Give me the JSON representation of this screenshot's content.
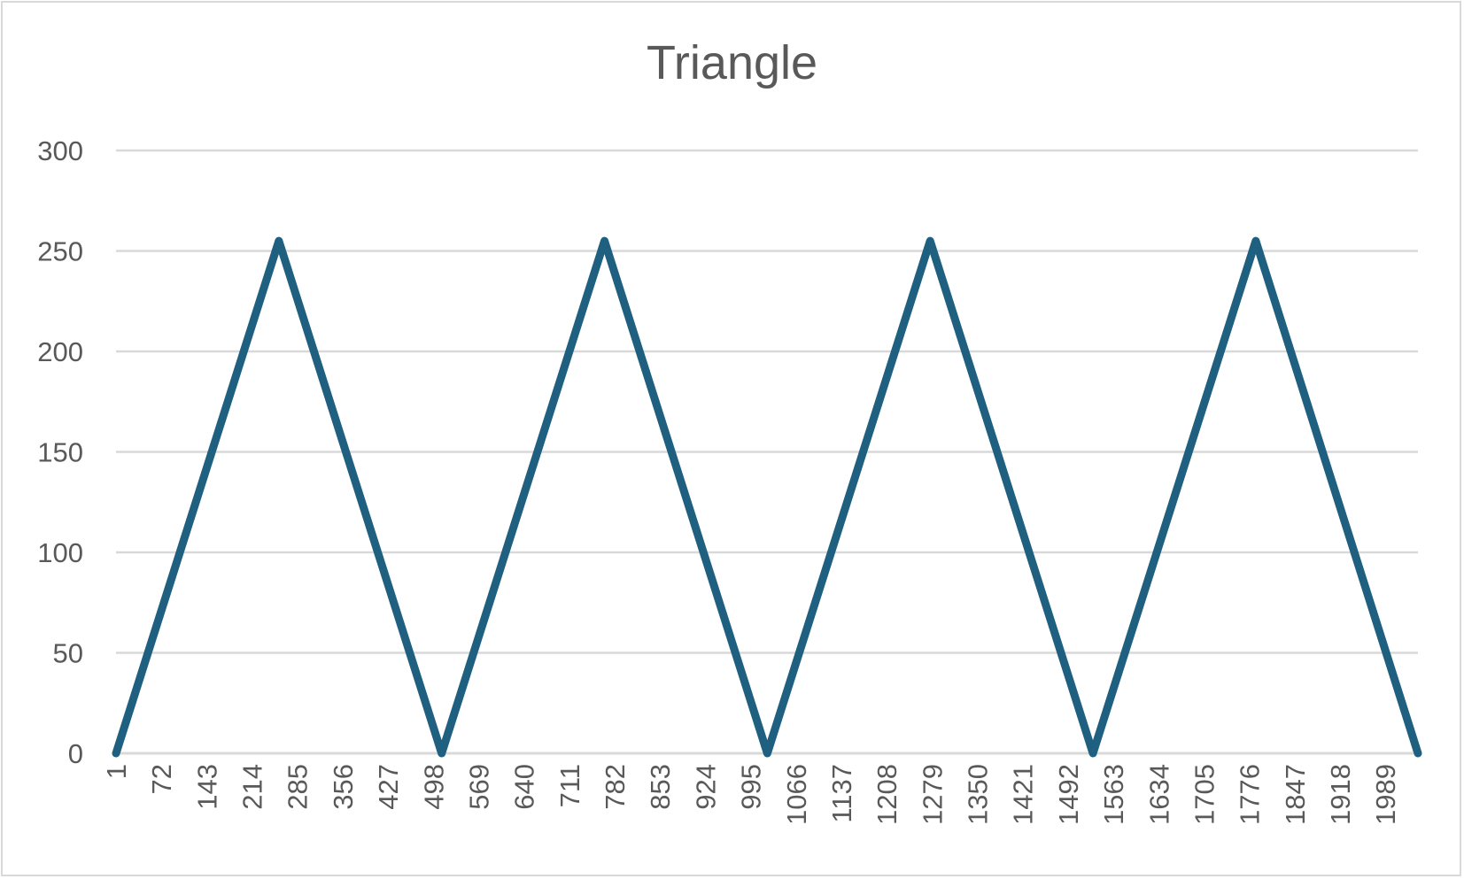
{
  "chart_data": {
    "type": "line",
    "title": "Triangle",
    "xlabel": "",
    "ylabel": "",
    "ylim": [
      0,
      300
    ],
    "yticks": [
      0,
      50,
      100,
      150,
      200,
      250,
      300
    ],
    "x_range": [
      1,
      2040
    ],
    "x_tick_labels": [
      "1",
      "72",
      "143",
      "214",
      "285",
      "356",
      "427",
      "498",
      "569",
      "640",
      "711",
      "782",
      "853",
      "924",
      "995",
      "1066",
      "1137",
      "1208",
      "1279",
      "1350",
      "1421",
      "1492",
      "1563",
      "1634",
      "1705",
      "1776",
      "1847",
      "1918",
      "1989"
    ],
    "series": [
      {
        "color": "#1f5f7f",
        "x": [
          1,
          256,
          511,
          766,
          1021,
          1276,
          1531,
          1786,
          2040
        ],
        "values": [
          0,
          255,
          0,
          255,
          0,
          255,
          0,
          255,
          0
        ]
      }
    ],
    "grid": true,
    "legend": "none",
    "gridline_color": "#d9d9d9",
    "axis_color": "#d9d9d9"
  }
}
